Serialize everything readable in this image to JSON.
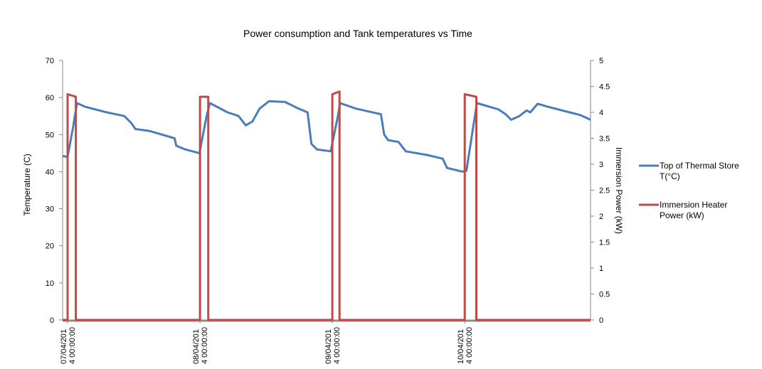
{
  "chart_data": {
    "type": "line",
    "title": "Power consumption and Tank temperatures vs Time",
    "xlabel": "",
    "ylabel": "Temperature  (C)",
    "y2label": "Immersion Power (kW)",
    "x_unit": "hours since 07/04/2014 00:00:00",
    "xlim": [
      -0.9,
      94.8
    ],
    "ylim": [
      0,
      70
    ],
    "y2lim": [
      0,
      5
    ],
    "yticks": [
      "0",
      "10",
      "20",
      "30",
      "40",
      "50",
      "60",
      "70"
    ],
    "y2ticks": [
      "0",
      "0.5",
      "1",
      "1.5",
      "2",
      "2.5",
      "3",
      "3.5",
      "4",
      "4.5",
      "5"
    ],
    "xticks": [
      {
        "h": 0,
        "line1": "07/04/201",
        "line2": "4 00:00:00"
      },
      {
        "h": 24,
        "line1": "08/04/201",
        "line2": "4 00:00:00"
      },
      {
        "h": 48,
        "line1": "09/04/201",
        "line2": "4 00:00:00"
      },
      {
        "h": 72,
        "line1": "10/04/201",
        "line2": "4 00:00:00"
      }
    ],
    "legend_position": "right",
    "series": [
      {
        "name": "Top of Thermal Store T(°C)",
        "name_line1": "Top of Thermal Store",
        "name_line2": "T(°C)",
        "axis": "left",
        "color": "#4a7ebb",
        "points": [
          [
            -0.9,
            44.2
          ],
          [
            0,
            44
          ],
          [
            1.0,
            52
          ],
          [
            1.7,
            58.5
          ],
          [
            3.2,
            57.5
          ],
          [
            7.1,
            56
          ],
          [
            10.3,
            55
          ],
          [
            11.6,
            53
          ],
          [
            12.3,
            51.5
          ],
          [
            14.8,
            51
          ],
          [
            19.4,
            49
          ],
          [
            19.7,
            47
          ],
          [
            21.3,
            46
          ],
          [
            23.9,
            45
          ],
          [
            25.2,
            55
          ],
          [
            25.8,
            58.5
          ],
          [
            29.0,
            56
          ],
          [
            31.0,
            55
          ],
          [
            32.3,
            52.5
          ],
          [
            33.5,
            53.5
          ],
          [
            34.8,
            57
          ],
          [
            36.5,
            59
          ],
          [
            39.4,
            58.8
          ],
          [
            41.9,
            57
          ],
          [
            43.5,
            56
          ],
          [
            44.2,
            47.5
          ],
          [
            45.2,
            46
          ],
          [
            47.7,
            45.5
          ],
          [
            49.0,
            55
          ],
          [
            49.4,
            58.5
          ],
          [
            52.3,
            57
          ],
          [
            56.8,
            55.5
          ],
          [
            57.4,
            50
          ],
          [
            58.1,
            48.5
          ],
          [
            60.0,
            48
          ],
          [
            61.3,
            45.5
          ],
          [
            65.2,
            44.5
          ],
          [
            68.0,
            43.5
          ],
          [
            68.8,
            41
          ],
          [
            71.6,
            40
          ],
          [
            72.3,
            40.2
          ],
          [
            74.2,
            58.5
          ],
          [
            78.1,
            56.8
          ],
          [
            79.4,
            55.5
          ],
          [
            80.4,
            54
          ],
          [
            81.9,
            55
          ],
          [
            83.2,
            56.5
          ],
          [
            83.9,
            56
          ],
          [
            85.2,
            58.3
          ],
          [
            87.1,
            57.5
          ],
          [
            91.0,
            56
          ],
          [
            92.9,
            55.3
          ],
          [
            94.8,
            54
          ]
        ]
      },
      {
        "name": "Immersion Heater Power (kW)",
        "name_line1": "Immersion Heater",
        "name_line2": "Power (kW)",
        "axis": "right",
        "color": "#be4b48",
        "points": [
          [
            -0.9,
            0
          ],
          [
            0,
            0
          ],
          [
            0,
            4.35
          ],
          [
            1.5,
            4.3
          ],
          [
            1.5,
            0
          ],
          [
            24,
            0
          ],
          [
            24,
            4.3
          ],
          [
            25.5,
            4.3
          ],
          [
            25.5,
            0
          ],
          [
            48,
            0
          ],
          [
            48,
            4.35
          ],
          [
            49.3,
            4.4
          ],
          [
            49.3,
            0
          ],
          [
            72,
            0
          ],
          [
            72,
            4.35
          ],
          [
            74.1,
            4.3
          ],
          [
            74.1,
            0
          ],
          [
            94.8,
            0
          ]
        ]
      }
    ]
  }
}
